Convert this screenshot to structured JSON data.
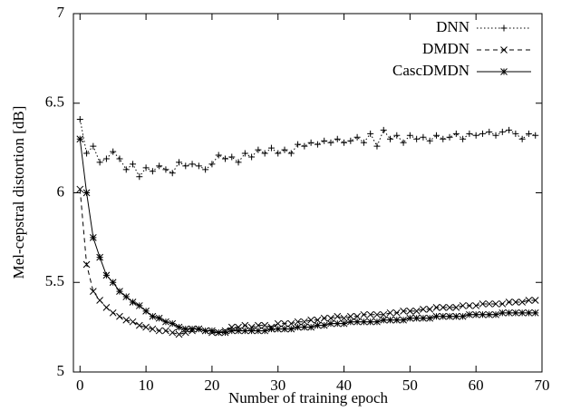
{
  "chart_data": {
    "type": "line",
    "x_label": "Number of training epoch",
    "y_label": "Mel-cepstral distortion [dB]",
    "xlim": [
      -1,
      70
    ],
    "xticks": [
      0,
      10,
      20,
      30,
      40,
      50,
      60,
      70
    ],
    "ylim": [
      5,
      7
    ],
    "yticks": [
      5,
      5.5,
      6,
      6.5,
      7
    ],
    "legend": "top-right",
    "x": [
      0,
      1,
      2,
      3,
      4,
      5,
      6,
      7,
      8,
      9,
      10,
      11,
      12,
      13,
      14,
      15,
      16,
      17,
      18,
      19,
      20,
      21,
      22,
      23,
      24,
      25,
      26,
      27,
      28,
      29,
      30,
      31,
      32,
      33,
      34,
      35,
      36,
      37,
      38,
      39,
      40,
      41,
      42,
      43,
      44,
      45,
      46,
      47,
      48,
      49,
      50,
      51,
      52,
      53,
      54,
      55,
      56,
      57,
      58,
      59,
      60,
      61,
      62,
      63,
      64,
      65,
      66,
      67,
      68,
      69
    ],
    "series": [
      {
        "name": "DNN",
        "color": "#000000",
        "line_style": "dotted",
        "marker": "plus",
        "values": [
          6.41,
          6.22,
          6.26,
          6.17,
          6.19,
          6.23,
          6.19,
          6.13,
          6.16,
          6.09,
          6.14,
          6.12,
          6.15,
          6.13,
          6.11,
          6.17,
          6.15,
          6.16,
          6.15,
          6.13,
          6.16,
          6.21,
          6.19,
          6.2,
          6.17,
          6.22,
          6.2,
          6.24,
          6.22,
          6.25,
          6.22,
          6.24,
          6.22,
          6.27,
          6.26,
          6.28,
          6.27,
          6.29,
          6.28,
          6.3,
          6.28,
          6.29,
          6.31,
          6.28,
          6.33,
          6.26,
          6.35,
          6.3,
          6.32,
          6.28,
          6.32,
          6.3,
          6.31,
          6.29,
          6.32,
          6.3,
          6.31,
          6.33,
          6.3,
          6.33,
          6.32,
          6.33,
          6.34,
          6.32,
          6.34,
          6.35,
          6.33,
          6.3,
          6.33,
          6.32
        ]
      },
      {
        "name": "DMDN",
        "color": "#000000",
        "line_style": "dashed",
        "marker": "cross",
        "values": [
          6.02,
          5.6,
          5.45,
          5.4,
          5.36,
          5.33,
          5.31,
          5.29,
          5.28,
          5.26,
          5.25,
          5.24,
          5.23,
          5.23,
          5.22,
          5.21,
          5.22,
          5.23,
          5.24,
          5.23,
          5.22,
          5.22,
          5.23,
          5.25,
          5.25,
          5.26,
          5.25,
          5.26,
          5.26,
          5.25,
          5.27,
          5.27,
          5.27,
          5.28,
          5.28,
          5.29,
          5.29,
          5.3,
          5.3,
          5.31,
          5.3,
          5.31,
          5.31,
          5.32,
          5.32,
          5.32,
          5.32,
          5.33,
          5.33,
          5.34,
          5.34,
          5.34,
          5.35,
          5.35,
          5.36,
          5.36,
          5.36,
          5.36,
          5.37,
          5.37,
          5.37,
          5.38,
          5.38,
          5.38,
          5.38,
          5.39,
          5.39,
          5.39,
          5.4,
          5.4
        ]
      },
      {
        "name": "CascDMDN",
        "color": "#000000",
        "line_style": "solid",
        "marker": "star",
        "values": [
          6.3,
          6.0,
          5.75,
          5.64,
          5.54,
          5.5,
          5.45,
          5.42,
          5.39,
          5.37,
          5.34,
          5.31,
          5.3,
          5.28,
          5.27,
          5.25,
          5.24,
          5.24,
          5.24,
          5.23,
          5.23,
          5.22,
          5.22,
          5.23,
          5.23,
          5.23,
          5.23,
          5.23,
          5.23,
          5.24,
          5.24,
          5.24,
          5.24,
          5.25,
          5.25,
          5.25,
          5.26,
          5.26,
          5.27,
          5.27,
          5.27,
          5.28,
          5.28,
          5.28,
          5.28,
          5.28,
          5.29,
          5.29,
          5.29,
          5.29,
          5.3,
          5.3,
          5.3,
          5.3,
          5.31,
          5.31,
          5.31,
          5.31,
          5.31,
          5.32,
          5.32,
          5.32,
          5.32,
          5.32,
          5.33,
          5.33,
          5.33,
          5.33,
          5.33,
          5.33
        ]
      }
    ]
  }
}
